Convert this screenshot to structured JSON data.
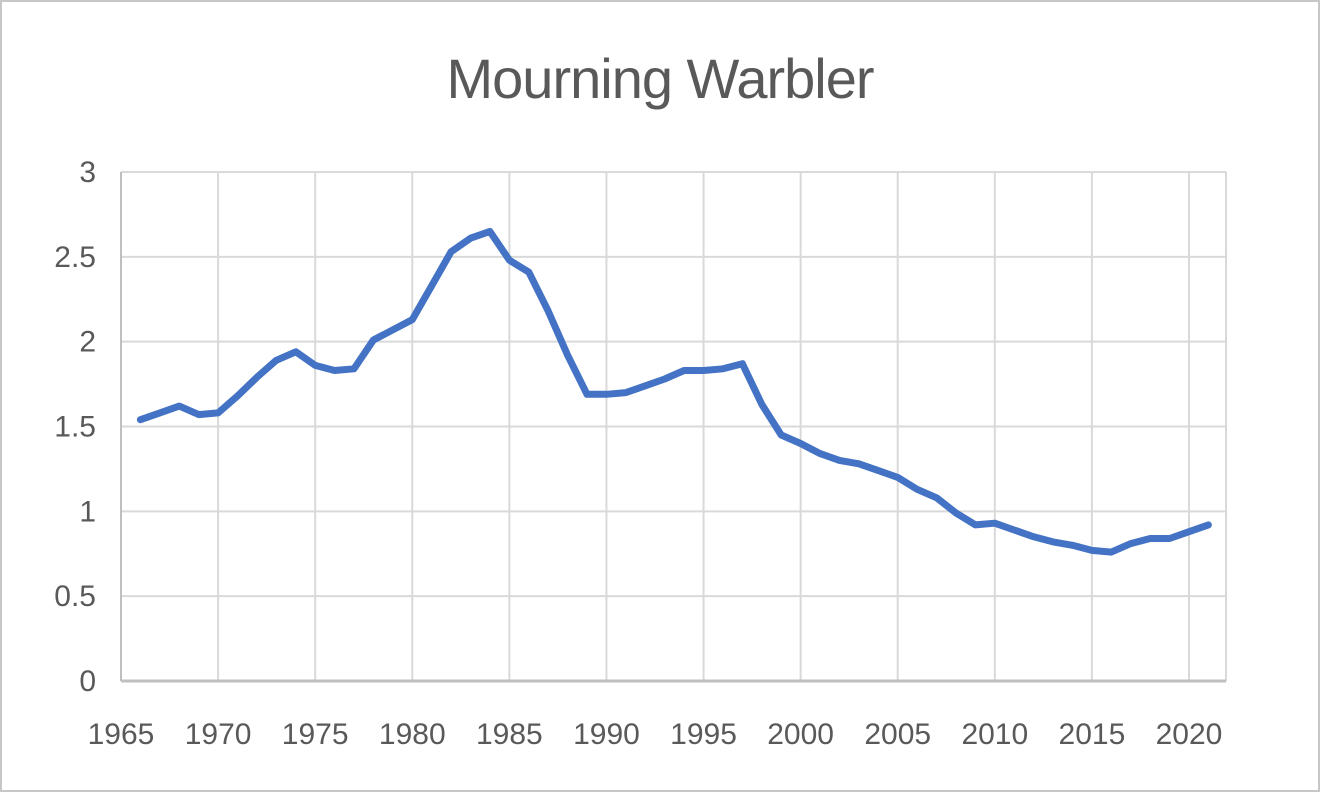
{
  "chart_data": {
    "type": "line",
    "title": "Mourning Warbler",
    "x": [
      1966,
      1967,
      1968,
      1969,
      1970,
      1971,
      1972,
      1973,
      1974,
      1975,
      1976,
      1977,
      1978,
      1979,
      1980,
      1981,
      1982,
      1983,
      1984,
      1985,
      1986,
      1987,
      1988,
      1989,
      1990,
      1991,
      1992,
      1993,
      1994,
      1995,
      1996,
      1997,
      1998,
      1999,
      2000,
      2001,
      2002,
      2003,
      2004,
      2005,
      2006,
      2007,
      2008,
      2009,
      2010,
      2011,
      2012,
      2013,
      2014,
      2015,
      2016,
      2017,
      2018,
      2019,
      2020,
      2021
    ],
    "values": [
      1.54,
      1.58,
      1.62,
      1.57,
      1.58,
      1.68,
      1.79,
      1.89,
      1.94,
      1.86,
      1.83,
      1.84,
      2.01,
      2.07,
      2.13,
      2.33,
      2.53,
      2.61,
      2.65,
      2.48,
      2.41,
      2.18,
      1.92,
      1.69,
      1.69,
      1.7,
      1.74,
      1.78,
      1.83,
      1.83,
      1.84,
      1.87,
      1.63,
      1.45,
      1.4,
      1.34,
      1.3,
      1.28,
      1.24,
      1.2,
      1.13,
      1.08,
      0.99,
      0.92,
      0.93,
      0.89,
      0.85,
      0.82,
      0.8,
      0.77,
      0.76,
      0.81,
      0.84,
      0.84,
      0.88,
      0.92
    ],
    "xlabel": "",
    "ylabel": "",
    "x_tick_labels": [
      "1965",
      "1970",
      "1975",
      "1980",
      "1985",
      "1990",
      "1995",
      "2000",
      "2005",
      "2010",
      "2015",
      "2020"
    ],
    "x_tick_values": [
      1965,
      1970,
      1975,
      1980,
      1985,
      1990,
      1995,
      2000,
      2005,
      2010,
      2015,
      2020
    ],
    "y_tick_labels": [
      "0",
      "0.5",
      "1",
      "1.5",
      "2",
      "2.5",
      "3"
    ],
    "y_tick_values": [
      0,
      0.5,
      1,
      1.5,
      2,
      2.5,
      3
    ],
    "xlim": [
      1965,
      2021.9
    ],
    "ylim": [
      0,
      3
    ],
    "grid": true,
    "legend": false,
    "colors": {
      "line": "#4472C4",
      "gridline": "#D9D9D9",
      "axis_line": "#BFBFBF",
      "text": "#595959"
    }
  }
}
